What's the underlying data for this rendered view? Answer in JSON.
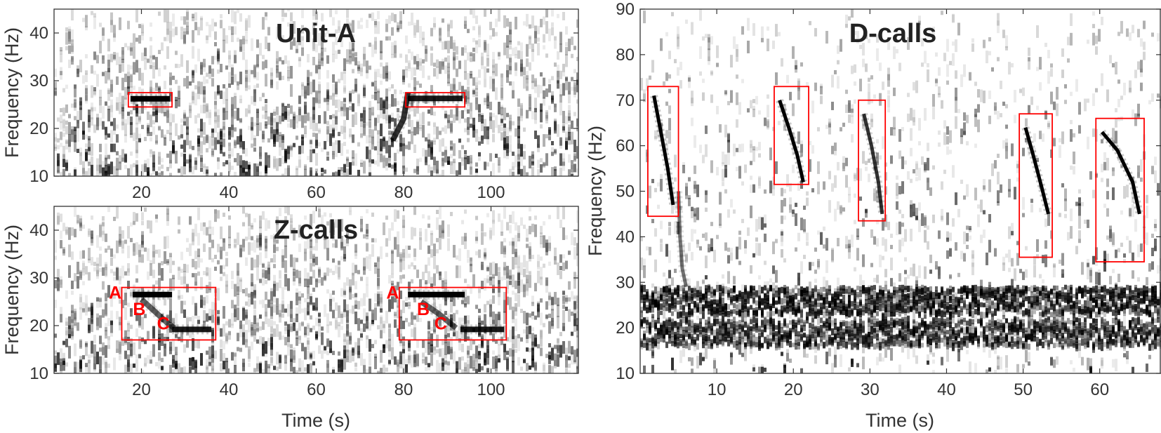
{
  "colors": {
    "box": "#ff0000",
    "axis": "#333333",
    "ink": "#000000",
    "background": "#ffffff"
  },
  "chart_data": [
    {
      "id": "unit-a",
      "type": "heatmap",
      "title": "Unit-A",
      "xlabel": "",
      "ylabel": "Frequency (Hz)",
      "xlim": [
        0,
        120
      ],
      "ylim": [
        10,
        45
      ],
      "xticks": [
        20,
        40,
        60,
        80,
        100
      ],
      "yticks": [
        10,
        20,
        30,
        40
      ],
      "boxes": [
        {
          "x": [
            17,
            27
          ],
          "y": [
            24.5,
            27.5
          ]
        },
        {
          "x": [
            80.5,
            94
          ],
          "y": [
            24.5,
            27.5
          ]
        }
      ],
      "tracks": [
        {
          "points": [
            [
              17.5,
              26.2
            ],
            [
              26.5,
              26.2
            ]
          ],
          "intensity": 1
        },
        {
          "points": [
            [
              81,
              26.3
            ],
            [
              93.5,
              26.3
            ]
          ],
          "intensity": 0.9
        },
        {
          "points": [
            [
              77.5,
              17.5
            ],
            [
              80,
              22
            ],
            [
              81,
              27.5
            ]
          ],
          "intensity": 0.8
        }
      ],
      "annotations": []
    },
    {
      "id": "z-calls",
      "type": "heatmap",
      "title": "Z-calls",
      "xlabel": "Time (s)",
      "ylabel": "Frequency (Hz)",
      "xlim": [
        0,
        120
      ],
      "ylim": [
        10,
        45
      ],
      "xticks": [
        20,
        40,
        60,
        80,
        100
      ],
      "yticks": [
        10,
        20,
        30,
        40
      ],
      "boxes": [
        {
          "x": [
            15.5,
            37
          ],
          "y": [
            17,
            28
          ]
        },
        {
          "x": [
            79,
            103.5
          ],
          "y": [
            17,
            28
          ]
        }
      ],
      "tracks": [
        {
          "points": [
            [
              18,
              26.5
            ],
            [
              27,
              26.5
            ]
          ],
          "intensity": 1
        },
        {
          "points": [
            [
              20,
              25.5
            ],
            [
              23,
              23
            ],
            [
              26,
              20.5
            ],
            [
              27.5,
              19.5
            ]
          ],
          "intensity": 0.6
        },
        {
          "points": [
            [
              27,
              19.2
            ],
            [
              36,
              19.2
            ]
          ],
          "intensity": 0.9
        },
        {
          "points": [
            [
              81,
              26.5
            ],
            [
              94,
              26.5
            ]
          ],
          "intensity": 1
        },
        {
          "points": [
            [
              84,
              25
            ],
            [
              88,
              22.5
            ],
            [
              92,
              19.5
            ]
          ],
          "intensity": 0.6
        },
        {
          "points": [
            [
              93,
              19.2
            ],
            [
              103,
              19.2
            ]
          ],
          "intensity": 0.9
        }
      ],
      "annotations": [
        {
          "text": "A",
          "x": 14,
          "y": 27
        },
        {
          "text": "B",
          "x": 19.5,
          "y": 23.5
        },
        {
          "text": "C",
          "x": 25,
          "y": 20.5
        },
        {
          "text": "A",
          "x": 77.5,
          "y": 27
        },
        {
          "text": "B",
          "x": 84.5,
          "y": 23.5
        },
        {
          "text": "C",
          "x": 88.5,
          "y": 20.5
        }
      ]
    },
    {
      "id": "d-calls",
      "type": "heatmap",
      "title": "D-calls",
      "xlabel": "Time (s)",
      "ylabel": "Frequency (Hz)",
      "xlim": [
        0,
        68
      ],
      "ylim": [
        10,
        90
      ],
      "xticks": [
        10,
        20,
        30,
        40,
        50,
        60
      ],
      "yticks": [
        10,
        20,
        30,
        40,
        50,
        60,
        70,
        80,
        90
      ],
      "boxes": [
        {
          "x": [
            1,
            5
          ],
          "y": [
            44.5,
            73
          ]
        },
        {
          "x": [
            17.5,
            22
          ],
          "y": [
            51.5,
            73
          ]
        },
        {
          "x": [
            28.5,
            32
          ],
          "y": [
            43.5,
            70
          ]
        },
        {
          "x": [
            49.5,
            53.8
          ],
          "y": [
            35.5,
            67
          ]
        },
        {
          "x": [
            59.5,
            65.8
          ],
          "y": [
            34.5,
            66
          ]
        }
      ],
      "bands": [
        {
          "y": [
            23,
            29
          ],
          "intensity": 0.85
        },
        {
          "y": [
            16,
            22
          ],
          "intensity": 0.75
        }
      ],
      "tracks": [
        {
          "points": [
            [
              1.8,
              71
            ],
            [
              2.7,
              63
            ],
            [
              3.6,
              55
            ],
            [
              4.3,
              47
            ]
          ],
          "intensity": 1
        },
        {
          "points": [
            [
              18.2,
              70
            ],
            [
              19.4,
              64
            ],
            [
              20.5,
              58
            ],
            [
              21.3,
              52
            ]
          ],
          "intensity": 1
        },
        {
          "points": [
            [
              29.2,
              67
            ],
            [
              30.2,
              60
            ],
            [
              31.1,
              52
            ],
            [
              31.6,
              45
            ]
          ],
          "intensity": 0.8
        },
        {
          "points": [
            [
              50.3,
              64
            ],
            [
              51.3,
              58
            ],
            [
              52.4,
              51
            ],
            [
              53.3,
              45
            ]
          ],
          "intensity": 1
        },
        {
          "points": [
            [
              60.3,
              63
            ],
            [
              62.3,
              59
            ],
            [
              64.3,
              52
            ],
            [
              65.2,
              45
            ]
          ],
          "intensity": 1
        },
        {
          "points": [
            [
              5,
              50
            ],
            [
              5.2,
              40
            ],
            [
              5.5,
              33
            ],
            [
              6,
              29
            ]
          ],
          "intensity": 0.55
        }
      ],
      "annotations": []
    }
  ]
}
